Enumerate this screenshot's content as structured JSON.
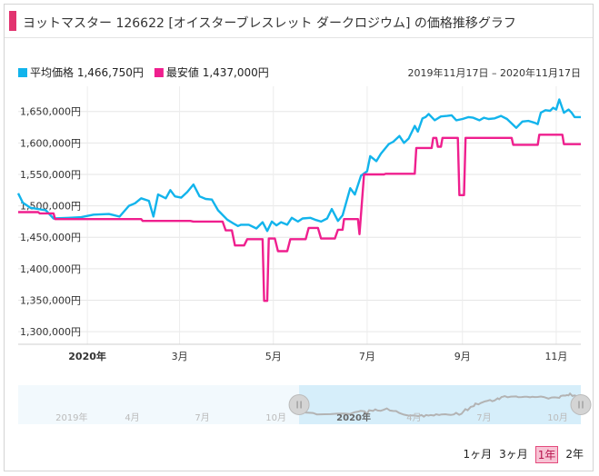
{
  "title": "ヨットマスター 126622 [オイスターブレスレット ダークロジウム] の価格推移グラフ",
  "date_range": "2019年11月17日 – 2020年11月17日",
  "range_buttons": [
    {
      "label": "1ヶ月",
      "active": false
    },
    {
      "label": "3ヶ月",
      "active": false
    },
    {
      "label": "1年",
      "active": true
    },
    {
      "label": "2年",
      "active": false
    }
  ],
  "colors": {
    "avg": "#12b4ec",
    "min": "#ef1f8e",
    "accent": "#e2336f"
  },
  "chart_data": {
    "type": "line",
    "legend": [
      {
        "name": "平均価格",
        "value": "1,466,750円",
        "color": "#12b4ec"
      },
      {
        "name": "最安値",
        "value": "1,437,000円",
        "color": "#ef1f8e"
      }
    ],
    "ylim": [
      1280000,
      1690000
    ],
    "y_ticks": [
      1300000,
      1350000,
      1400000,
      1450000,
      1500000,
      1550000,
      1600000,
      1650000
    ],
    "y_tick_labels": [
      "1,300,000円",
      "1,350,000円",
      "1,400,000円",
      "1,450,000円",
      "1,500,000円",
      "1,550,000円",
      "1,600,000円",
      "1,650,000円"
    ],
    "x_range": [
      "2019-11-17",
      "2020-11-17"
    ],
    "x_ticks": [
      {
        "date": "2020-01-01",
        "label": "2020年",
        "bold": true
      },
      {
        "date": "2020-03-01",
        "label": "3月",
        "bold": false
      },
      {
        "date": "2020-05-01",
        "label": "5月",
        "bold": false
      },
      {
        "date": "2020-07-01",
        "label": "7月",
        "bold": false
      },
      {
        "date": "2020-09-01",
        "label": "9月",
        "bold": false
      },
      {
        "date": "2020-11-01",
        "label": "11月",
        "bold": false
      }
    ],
    "series": [
      {
        "name": "平均価格",
        "color": "#12b4ec",
        "points": [
          [
            "2019-11-17",
            1520000
          ],
          [
            "2019-11-20",
            1505000
          ],
          [
            "2019-11-25",
            1497000
          ],
          [
            "2019-12-05",
            1493000
          ],
          [
            "2019-12-10",
            1480000
          ],
          [
            "2019-12-20",
            1481000
          ],
          [
            "2019-12-28",
            1482000
          ],
          [
            "2020-01-05",
            1486000
          ],
          [
            "2020-01-15",
            1487000
          ],
          [
            "2020-01-22",
            1483000
          ],
          [
            "2020-01-28",
            1500000
          ],
          [
            "2020-02-01",
            1504000
          ],
          [
            "2020-02-05",
            1512000
          ],
          [
            "2020-02-10",
            1508000
          ],
          [
            "2020-02-13",
            1483000
          ],
          [
            "2020-02-16",
            1518000
          ],
          [
            "2020-02-21",
            1512000
          ],
          [
            "2020-02-24",
            1525000
          ],
          [
            "2020-02-27",
            1515000
          ],
          [
            "2020-03-02",
            1513000
          ],
          [
            "2020-03-06",
            1522000
          ],
          [
            "2020-03-10",
            1534000
          ],
          [
            "2020-03-14",
            1515000
          ],
          [
            "2020-03-18",
            1511000
          ],
          [
            "2020-03-22",
            1510000
          ],
          [
            "2020-03-26",
            1493000
          ],
          [
            "2020-04-01",
            1478000
          ],
          [
            "2020-04-05",
            1472000
          ],
          [
            "2020-04-08",
            1468000
          ],
          [
            "2020-04-10",
            1470000
          ],
          [
            "2020-04-15",
            1470000
          ],
          [
            "2020-04-20",
            1464000
          ],
          [
            "2020-04-24",
            1474000
          ],
          [
            "2020-04-27",
            1460000
          ],
          [
            "2020-04-30",
            1475000
          ],
          [
            "2020-05-03",
            1469000
          ],
          [
            "2020-05-06",
            1474000
          ],
          [
            "2020-05-10",
            1470000
          ],
          [
            "2020-05-13",
            1481000
          ],
          [
            "2020-05-17",
            1475000
          ],
          [
            "2020-05-20",
            1480000
          ],
          [
            "2020-05-25",
            1481000
          ],
          [
            "2020-05-28",
            1478000
          ],
          [
            "2020-06-01",
            1475000
          ],
          [
            "2020-06-05",
            1480000
          ],
          [
            "2020-06-08",
            1495000
          ],
          [
            "2020-06-12",
            1476000
          ],
          [
            "2020-06-15",
            1485000
          ],
          [
            "2020-06-20",
            1528000
          ],
          [
            "2020-06-23",
            1518000
          ],
          [
            "2020-06-27",
            1548000
          ],
          [
            "2020-07-01",
            1555000
          ],
          [
            "2020-07-03",
            1579000
          ],
          [
            "2020-07-07",
            1571000
          ],
          [
            "2020-07-10",
            1583000
          ],
          [
            "2020-07-15",
            1598000
          ],
          [
            "2020-07-18",
            1602000
          ],
          [
            "2020-07-22",
            1611000
          ],
          [
            "2020-07-25",
            1600000
          ],
          [
            "2020-07-28",
            1607000
          ],
          [
            "2020-08-01",
            1627000
          ],
          [
            "2020-08-03",
            1618000
          ],
          [
            "2020-08-06",
            1639000
          ],
          [
            "2020-08-08",
            1641000
          ],
          [
            "2020-08-10",
            1646000
          ],
          [
            "2020-08-14",
            1636000
          ],
          [
            "2020-08-18",
            1642000
          ],
          [
            "2020-08-22",
            1643000
          ],
          [
            "2020-08-25",
            1644000
          ],
          [
            "2020-08-28",
            1636000
          ],
          [
            "2020-09-01",
            1638000
          ],
          [
            "2020-09-05",
            1641000
          ],
          [
            "2020-09-08",
            1640000
          ],
          [
            "2020-09-12",
            1636000
          ],
          [
            "2020-09-15",
            1640000
          ],
          [
            "2020-09-18",
            1638000
          ],
          [
            "2020-09-22",
            1639000
          ],
          [
            "2020-09-26",
            1643000
          ],
          [
            "2020-09-30",
            1638000
          ],
          [
            "2020-10-03",
            1631000
          ],
          [
            "2020-10-06",
            1624000
          ],
          [
            "2020-10-10",
            1634000
          ],
          [
            "2020-10-14",
            1635000
          ],
          [
            "2020-10-18",
            1632000
          ],
          [
            "2020-10-20",
            1630000
          ],
          [
            "2020-10-22",
            1648000
          ],
          [
            "2020-10-25",
            1652000
          ],
          [
            "2020-10-28",
            1651000
          ],
          [
            "2020-10-30",
            1656000
          ],
          [
            "2020-11-01",
            1653000
          ],
          [
            "2020-11-03",
            1669000
          ],
          [
            "2020-11-06",
            1648000
          ],
          [
            "2020-11-09",
            1653000
          ],
          [
            "2020-11-11",
            1648000
          ],
          [
            "2020-11-13",
            1641000
          ],
          [
            "2020-11-17",
            1641000
          ]
        ]
      },
      {
        "name": "最安値",
        "color": "#ef1f8e",
        "points": [
          [
            "2019-11-17",
            1490000
          ],
          [
            "2019-11-30",
            1490000
          ],
          [
            "2019-12-01",
            1488000
          ],
          [
            "2019-12-10",
            1488000
          ],
          [
            "2019-12-11",
            1479000
          ],
          [
            "2020-02-05",
            1479000
          ],
          [
            "2020-02-06",
            1476000
          ],
          [
            "2020-03-08",
            1476000
          ],
          [
            "2020-03-10",
            1475000
          ],
          [
            "2020-03-29",
            1475000
          ],
          [
            "2020-03-31",
            1461000
          ],
          [
            "2020-04-04",
            1461000
          ],
          [
            "2020-04-06",
            1437000
          ],
          [
            "2020-04-12",
            1437000
          ],
          [
            "2020-04-14",
            1447000
          ],
          [
            "2020-04-24",
            1447000
          ],
          [
            "2020-04-25",
            1349000
          ],
          [
            "2020-04-27",
            1349000
          ],
          [
            "2020-04-28",
            1448000
          ],
          [
            "2020-05-02",
            1448000
          ],
          [
            "2020-05-04",
            1428000
          ],
          [
            "2020-05-10",
            1428000
          ],
          [
            "2020-05-12",
            1447000
          ],
          [
            "2020-05-22",
            1447000
          ],
          [
            "2020-05-24",
            1465000
          ],
          [
            "2020-05-30",
            1465000
          ],
          [
            "2020-06-01",
            1448000
          ],
          [
            "2020-06-10",
            1448000
          ],
          [
            "2020-06-12",
            1462000
          ],
          [
            "2020-06-15",
            1462000
          ],
          [
            "2020-06-16",
            1479000
          ],
          [
            "2020-06-25",
            1479000
          ],
          [
            "2020-06-26",
            1455000
          ],
          [
            "2020-06-29",
            1550000
          ],
          [
            "2020-07-12",
            1550000
          ],
          [
            "2020-07-13",
            1551000
          ],
          [
            "2020-08-01",
            1551000
          ],
          [
            "2020-08-02",
            1592000
          ],
          [
            "2020-08-12",
            1592000
          ],
          [
            "2020-08-13",
            1608000
          ],
          [
            "2020-08-15",
            1608000
          ],
          [
            "2020-08-16",
            1594000
          ],
          [
            "2020-08-18",
            1594000
          ],
          [
            "2020-08-19",
            1608000
          ],
          [
            "2020-08-29",
            1608000
          ],
          [
            "2020-08-30",
            1517000
          ],
          [
            "2020-09-02",
            1517000
          ],
          [
            "2020-09-03",
            1608000
          ],
          [
            "2020-10-03",
            1608000
          ],
          [
            "2020-10-04",
            1597000
          ],
          [
            "2020-10-20",
            1597000
          ],
          [
            "2020-10-21",
            1613000
          ],
          [
            "2020-11-05",
            1613000
          ],
          [
            "2020-11-06",
            1598000
          ],
          [
            "2020-11-17",
            1598000
          ]
        ]
      }
    ],
    "navigator": {
      "labels": [
        "2019年",
        "4月",
        "7月",
        "10月",
        "2020年",
        "4月",
        "7月",
        "10月"
      ],
      "selected_range": [
        "2019-11-17",
        "2020-11-17"
      ]
    }
  }
}
